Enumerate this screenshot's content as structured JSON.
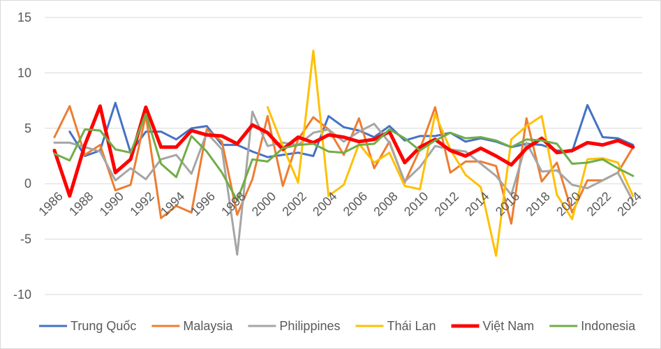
{
  "chart_data": {
    "type": "line",
    "x": [
      1986,
      1987,
      1988,
      1989,
      1990,
      1991,
      1992,
      1993,
      1994,
      1995,
      1996,
      1997,
      1998,
      1999,
      2000,
      2001,
      2002,
      2003,
      2004,
      2005,
      2006,
      2007,
      2008,
      2009,
      2010,
      2011,
      2012,
      2013,
      2014,
      2015,
      2016,
      2017,
      2018,
      2019,
      2020,
      2021,
      2022,
      2023,
      2024
    ],
    "x_tick_labels": [
      "1986",
      "1988",
      "1990",
      "1992",
      "1994",
      "1996",
      "1998",
      "2000",
      "2002",
      "2004",
      "2006",
      "2008",
      "2010",
      "2012",
      "2014",
      "2016",
      "2018",
      "2020",
      "2022",
      "2024"
    ],
    "ylim": [
      -10,
      15
    ],
    "y_ticks": [
      -10,
      -5,
      0,
      5,
      10,
      15
    ],
    "y_tick_labels": [
      "-10",
      "-5",
      "0",
      "5",
      "10",
      "15"
    ],
    "grid": "horizontal",
    "legend_position": "bottom",
    "series": [
      {
        "name": "Trung Quốc",
        "color": "#4472C4",
        "width": 3,
        "values": [
          null,
          4.7,
          2.5,
          3.0,
          7.3,
          2.8,
          4.7,
          4.7,
          4.0,
          5.0,
          5.2,
          3.5,
          3.5,
          2.9,
          2.4,
          2.6,
          2.8,
          2.5,
          6.1,
          5.1,
          4.8,
          4.2,
          5.2,
          3.9,
          4.3,
          4.3,
          4.6,
          3.8,
          4.1,
          3.8,
          3.3,
          3.6,
          3.5,
          3.0,
          2.9,
          7.1,
          4.2,
          4.1,
          3.5
        ]
      },
      {
        "name": "Malaysia",
        "color": "#ED7D31",
        "width": 3,
        "values": [
          4.2,
          7.0,
          2.6,
          3.5,
          -0.6,
          -0.1,
          6.2,
          -3.1,
          -2.0,
          -2.6,
          4.9,
          3.8,
          -2.8,
          0.4,
          6.1,
          -0.2,
          4.0,
          6.0,
          4.9,
          2.6,
          5.9,
          1.4,
          3.8,
          0.1,
          3.1,
          6.9,
          1.0,
          2.0,
          2.0,
          1.6,
          -3.6,
          5.9,
          0.2,
          1.9,
          -2.6,
          0.3,
          0.3,
          1.0,
          3.3
        ]
      },
      {
        "name": "Philippines",
        "color": "#A5A5A5",
        "width": 3,
        "values": [
          3.7,
          3.7,
          3.3,
          2.9,
          0.3,
          1.4,
          0.4,
          2.2,
          2.6,
          0.9,
          4.6,
          3.1,
          -6.4,
          6.5,
          3.4,
          3.7,
          3.5,
          4.6,
          4.9,
          3.8,
          4.7,
          5.4,
          3.7,
          0.2,
          1.5,
          3.4,
          3.1,
          2.9,
          1.8,
          0.7,
          -1.0,
          3.7,
          1.1,
          1.2,
          -0.1,
          -0.4,
          0.3,
          1.0,
          -1.6
        ]
      },
      {
        "name": "Thái Lan",
        "color": "#FFC000",
        "width": 3,
        "values": [
          null,
          null,
          null,
          null,
          null,
          null,
          null,
          null,
          null,
          null,
          null,
          null,
          null,
          null,
          6.9,
          3.4,
          0.1,
          12.0,
          -1.1,
          -0.1,
          3.6,
          1.9,
          2.8,
          -0.2,
          -0.5,
          6.3,
          3.1,
          0.8,
          -0.3,
          -6.5,
          4.0,
          5.2,
          6.1,
          -1.0,
          -3.2,
          2.2,
          2.3,
          1.9,
          -1.1
        ]
      },
      {
        "name": "Việt Nam",
        "color": "#FF0000",
        "width": 5,
        "values": [
          3.0,
          -1.1,
          3.5,
          7.0,
          1.0,
          2.2,
          6.9,
          3.3,
          3.3,
          4.8,
          4.4,
          4.3,
          3.6,
          5.3,
          4.6,
          3.1,
          4.2,
          3.7,
          4.4,
          4.2,
          3.8,
          4.0,
          4.7,
          1.9,
          3.3,
          4.0,
          3.0,
          2.5,
          3.2,
          2.5,
          1.7,
          3.2,
          4.1,
          2.8,
          3.0,
          3.7,
          3.5,
          3.9,
          3.3
        ]
      },
      {
        "name": "Indonesia",
        "color": "#70AD47",
        "width": 3,
        "values": [
          2.7,
          2.1,
          4.9,
          4.8,
          3.1,
          2.8,
          6.3,
          1.8,
          0.6,
          4.3,
          2.9,
          1.0,
          -1.5,
          2.2,
          2.0,
          3.2,
          3.5,
          3.6,
          2.9,
          2.8,
          3.5,
          3.6,
          4.9,
          4.1,
          3.0,
          3.9,
          4.6,
          4.1,
          4.2,
          3.9,
          3.3,
          4.0,
          3.9,
          3.6,
          1.8,
          1.9,
          2.2,
          1.4,
          0.7
        ]
      }
    ]
  }
}
